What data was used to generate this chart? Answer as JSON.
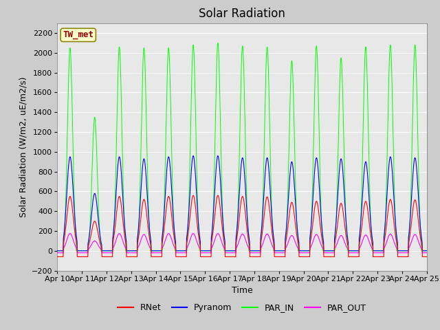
{
  "title": "Solar Radiation",
  "ylabel": "Solar Radiation (W/m2, uE/m2/s)",
  "xlabel": "Time",
  "ylim": [
    -200,
    2300
  ],
  "yticks": [
    -200,
    0,
    200,
    400,
    600,
    800,
    1000,
    1200,
    1400,
    1600,
    1800,
    2000,
    2200
  ],
  "n_days": 15,
  "points_per_day": 144,
  "colors": {
    "RNet": "#ff0000",
    "Pyranom": "#0000ff",
    "PAR_IN": "#00ff00",
    "PAR_OUT": "#ff00ff"
  },
  "station_label": "TW_met",
  "station_box_facecolor": "#ffffcc",
  "station_box_edgecolor": "#888800",
  "station_text_color": "#990000",
  "fig_facecolor": "#cccccc",
  "plot_facecolor": "#e8e8e8",
  "grid_color": "#ffffff",
  "title_fontsize": 12,
  "label_fontsize": 9,
  "tick_fontsize": 8,
  "legend_fontsize": 9
}
